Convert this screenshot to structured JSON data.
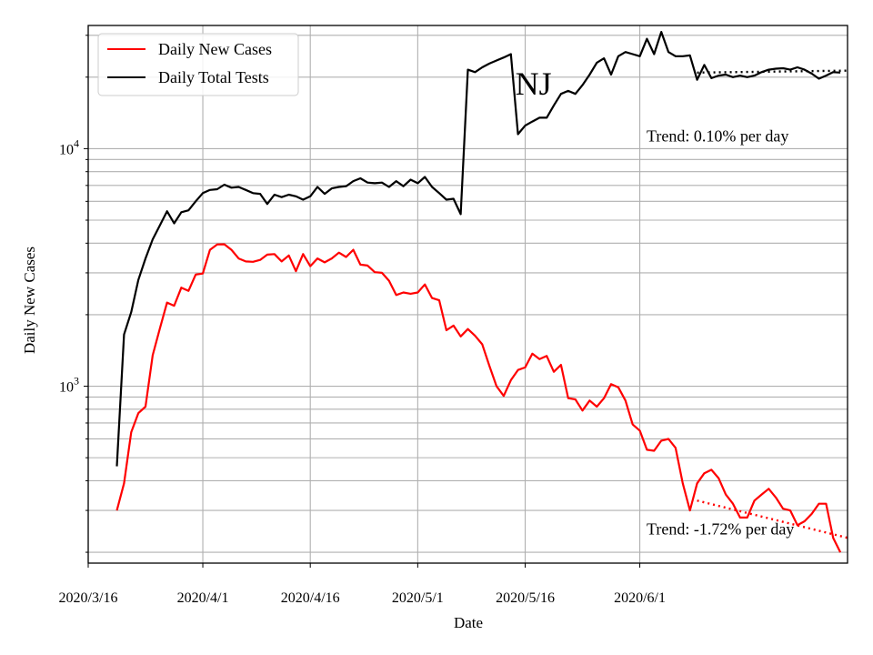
{
  "chart_data": {
    "type": "line",
    "title": "",
    "xlabel": "Date",
    "ylabel": "Daily New Cases",
    "yscale": "log",
    "ylim": [
      180,
      33000
    ],
    "xlim": [
      "2020-03-16",
      "2020-06-30"
    ],
    "grid": true,
    "legend_position": "top-left",
    "x_ticks": [
      {
        "date": "2020-03-16",
        "label": "2020/3/16"
      },
      {
        "date": "2020-04-01",
        "label": "2020/4/1"
      },
      {
        "date": "2020-04-16",
        "label": "2020/4/16"
      },
      {
        "date": "2020-05-01",
        "label": "2020/5/1"
      },
      {
        "date": "2020-05-16",
        "label": "2020/5/16"
      },
      {
        "date": "2020-06-01",
        "label": "2020/6/1"
      }
    ],
    "y_tick_labels": [
      {
        "value": 1000,
        "base": "10",
        "exp": "3"
      },
      {
        "value": 10000,
        "base": "10",
        "exp": "4"
      }
    ],
    "x_start": "2020-03-20",
    "x_step": "1 day",
    "series": [
      {
        "name": "Daily New Cases",
        "color": "#ff0000",
        "values": [
          300,
          390,
          640,
          770,
          820,
          1350,
          1750,
          2250,
          2180,
          2600,
          2520,
          2950,
          2980,
          3750,
          3950,
          3960,
          3750,
          3450,
          3350,
          3340,
          3400,
          3580,
          3600,
          3350,
          3550,
          3050,
          3600,
          3200,
          3450,
          3320,
          3450,
          3650,
          3500,
          3750,
          3250,
          3220,
          3020,
          3000,
          2780,
          2420,
          2480,
          2450,
          2480,
          2680,
          2350,
          2300,
          1720,
          1800,
          1620,
          1740,
          1630,
          1500,
          1220,
          1000,
          910,
          1060,
          1170,
          1200,
          1370,
          1300,
          1340,
          1150,
          1230,
          890,
          880,
          790,
          870,
          820,
          890,
          1020,
          990,
          870,
          690,
          650,
          540,
          535,
          590,
          600,
          550,
          390,
          300,
          390,
          430,
          445,
          410,
          350,
          320,
          280,
          280,
          330,
          350,
          370,
          340,
          305,
          300,
          260,
          270,
          290,
          320,
          320,
          230,
          200
        ],
        "trend": {
          "label": "Trend: -1.72% per day",
          "from": "2020-06-09",
          "to": "2020-06-30",
          "start_value": 330,
          "end_value": 230
        }
      },
      {
        "name": "Daily Total Tests",
        "color": "#000000",
        "values": [
          460,
          1650,
          2050,
          2800,
          3450,
          4150,
          4750,
          5450,
          4850,
          5400,
          5500,
          6000,
          6500,
          6700,
          6750,
          7050,
          6850,
          6900,
          6700,
          6500,
          6450,
          5850,
          6400,
          6250,
          6400,
          6300,
          6100,
          6300,
          6900,
          6450,
          6800,
          6900,
          6950,
          7300,
          7500,
          7200,
          7150,
          7200,
          6900,
          7300,
          6950,
          7400,
          7150,
          7600,
          6900,
          6500,
          6100,
          6150,
          5300,
          21500,
          21000,
          22000,
          22800,
          23500,
          24200,
          25000,
          11500,
          12500,
          13000,
          13500,
          13500,
          15200,
          17000,
          17500,
          17000,
          18500,
          20500,
          23000,
          24000,
          20500,
          24500,
          25500,
          25000,
          24500,
          29000,
          25000,
          31000,
          25500,
          24500,
          24500,
          24700,
          19500,
          22500,
          19800,
          20300,
          20500,
          20000,
          20300,
          20000,
          20300,
          21000,
          21500,
          21700,
          21800,
          21500,
          22000,
          21500,
          20700,
          19700,
          20300,
          21000,
          20900
        ],
        "trend": {
          "label": "Trend: 0.10% per day",
          "from": "2020-06-09",
          "to": "2020-06-30",
          "start_value": 20900,
          "end_value": 21300
        }
      }
    ],
    "annotations": [
      {
        "text": "NJ",
        "date": "2020-05-15",
        "value": 20500
      }
    ]
  }
}
